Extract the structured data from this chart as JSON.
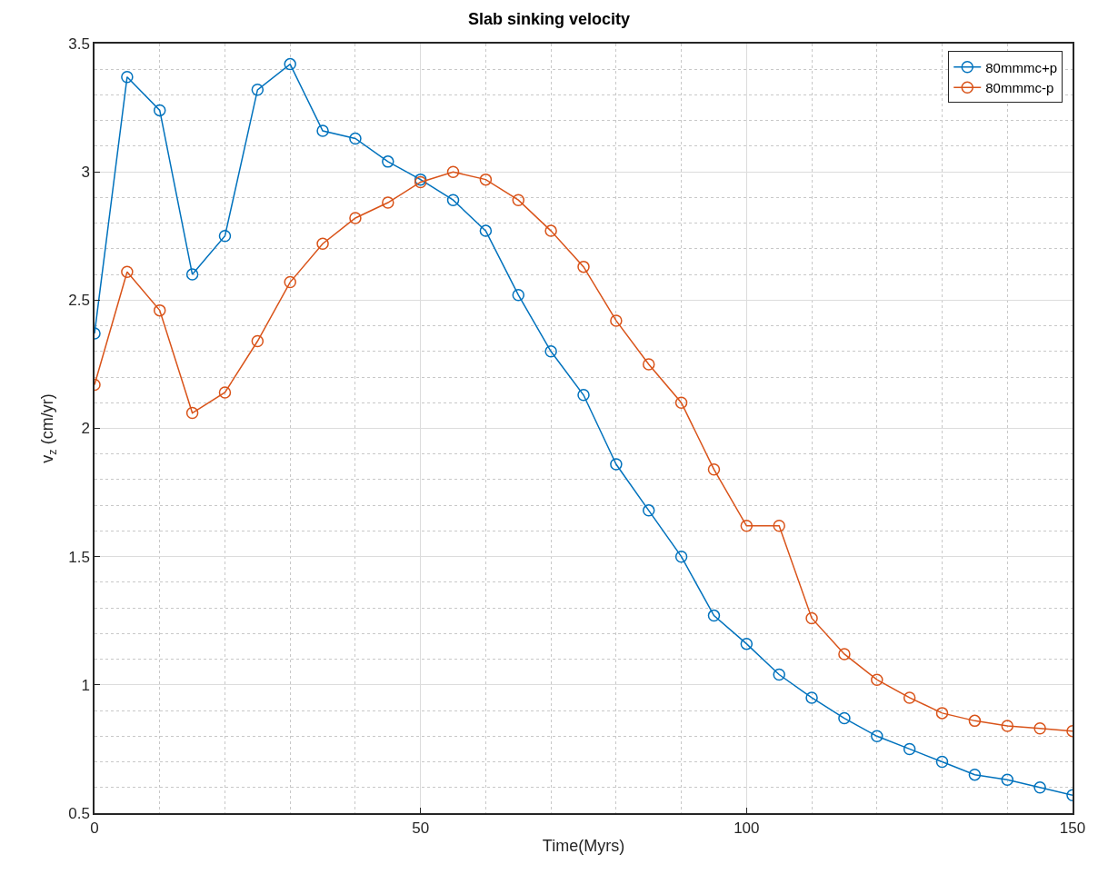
{
  "chart_data": {
    "type": "line",
    "title": "Slab sinking velocity",
    "xlabel": "Time(Myrs)",
    "ylabel": "v$_{z}$ (cm/yr)",
    "x": [
      0,
      5,
      10,
      15,
      20,
      25,
      30,
      35,
      40,
      45,
      50,
      55,
      60,
      65,
      70,
      75,
      80,
      85,
      90,
      95,
      100,
      105,
      110,
      115,
      120,
      125,
      130,
      135,
      140,
      145,
      150
    ],
    "series": [
      {
        "name": "80mmmc+p",
        "color": "#0072bd",
        "values": [
          2.37,
          3.37,
          3.24,
          2.6,
          2.75,
          3.32,
          3.42,
          3.16,
          3.13,
          3.04,
          2.97,
          2.89,
          2.77,
          2.52,
          2.3,
          2.13,
          1.86,
          1.68,
          1.5,
          1.27,
          1.16,
          1.04,
          0.95,
          0.87,
          0.8,
          0.75,
          0.7,
          0.65,
          0.63,
          0.6,
          0.57
        ]
      },
      {
        "name": "80mmmc-p",
        "color": "#d95319",
        "values": [
          2.17,
          2.61,
          2.46,
          2.06,
          2.14,
          2.34,
          2.57,
          2.72,
          2.82,
          2.88,
          2.96,
          3.0,
          2.97,
          2.89,
          2.77,
          2.63,
          2.42,
          2.25,
          2.1,
          1.84,
          1.62,
          1.62,
          1.26,
          1.12,
          1.02,
          0.95,
          0.89,
          0.86,
          0.84,
          0.83,
          0.82
        ]
      }
    ],
    "xlim": [
      0,
      150
    ],
    "xticks": [
      0,
      50,
      100,
      150
    ],
    "ylim": [
      0.5,
      3.5
    ],
    "yticks": [
      0.5,
      1,
      1.5,
      2,
      2.5,
      3,
      3.5
    ],
    "grid": true,
    "legend": "top right",
    "marker": "circle",
    "line_style": "solid"
  }
}
